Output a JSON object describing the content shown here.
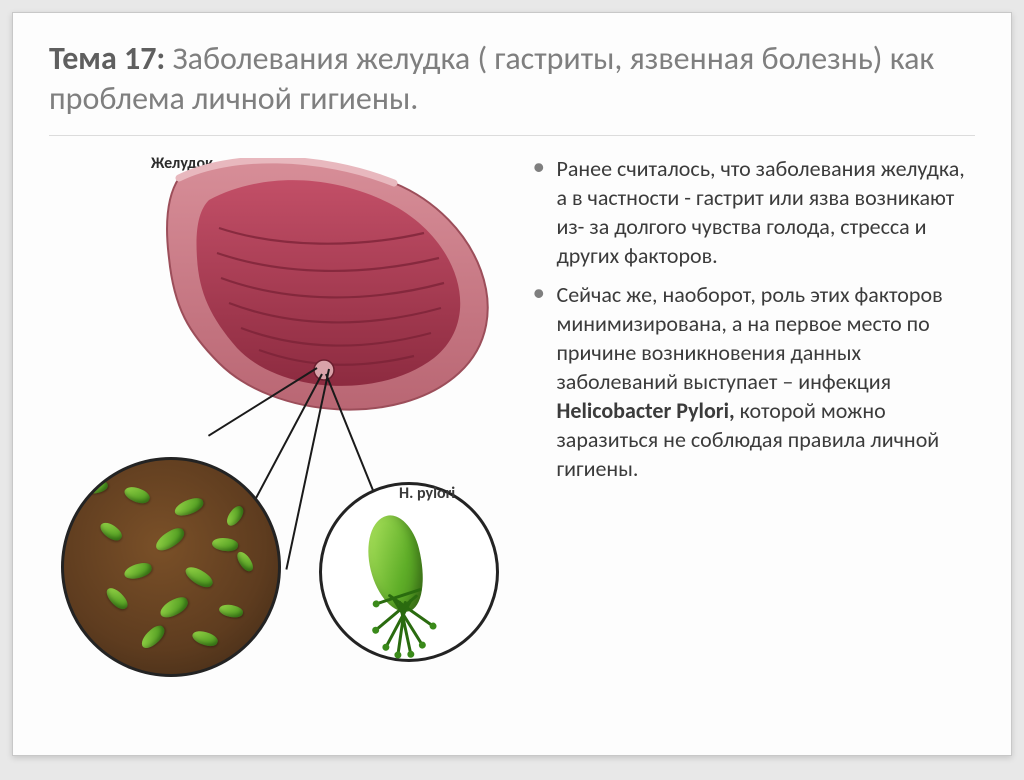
{
  "title_bold": "Тема 17:",
  "title_rest": " Заболевания желудка ( гастриты, язвенная болезнь) как проблема личной гигиены.",
  "labels": {
    "stomach": "Желудок",
    "hpylori": "H. pylori"
  },
  "bullets": [
    "Ранее считалось, что заболевания желудка, а в частности -  гастрит или язва возникают из- за долгого чувства голода, стресса и других факторов.",
    "Сейчас же, наоборот, роль этих факторов минимизирована, а на первое место по причине возникновения данных заболеваний выступает – инфекция <b>Helicobacter Pylori,</b> которой можно заразиться не соблюдая правила личной гигиены."
  ],
  "style": {
    "title_color": "#7f7f7f",
    "title_bold_color": "#5f5f5f",
    "text_color": "#3b3b3b",
    "stomach_outer": "#c97a86",
    "stomach_inner_top": "#b7455d",
    "stomach_inner_bot": "#8b2a3f",
    "folds": "#7a2236",
    "colony_browns": [
      "#7a5028",
      "#5e3c1f",
      "#3a2614"
    ],
    "bacteria_greens": [
      "#a8e05a",
      "#5fae28",
      "#3f7e18"
    ],
    "circle_border": "#232323"
  }
}
